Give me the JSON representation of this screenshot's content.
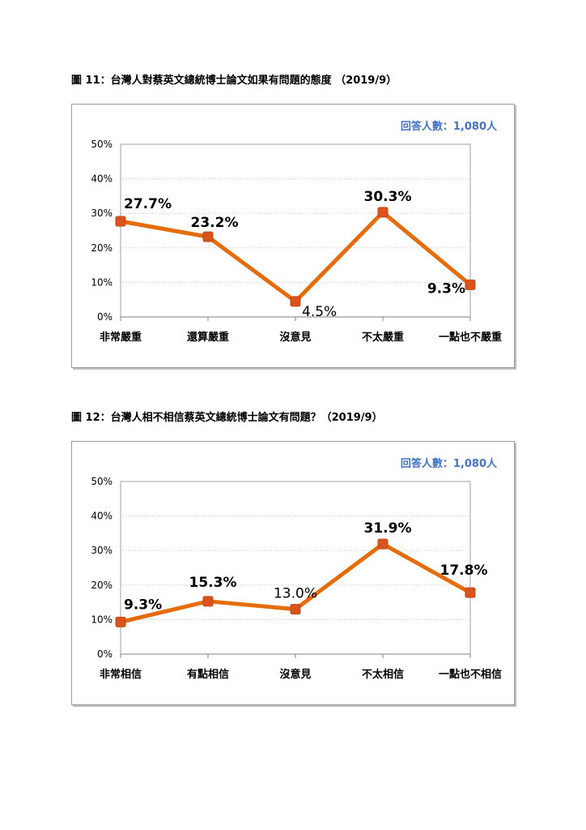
{
  "figure11": {
    "title": "圖 11：台灣人對蔡英文總統博士論文如果有問題的態度 （2019/9）",
    "respondents": "回答人數：1,080人"
  },
  "figure12": {
    "title": "圖 12：台灣人相不相信蔡英文總統博士論文有問題？（2019/9）",
    "respondents": "回答人數：1,080人"
  },
  "chart_data": [
    {
      "type": "line",
      "title": "圖 11：台灣人對蔡英文總統博士論文如果有問題的態度 （2019/9）",
      "categories": [
        "非常嚴重",
        "還算嚴重",
        "沒意見",
        "不太嚴重",
        "一點也不嚴重"
      ],
      "series": [
        {
          "values": [
            27.7,
            23.2,
            4.5,
            30.3,
            9.3
          ]
        }
      ],
      "data_labels": [
        "27.7%",
        "23.2%",
        "4.5%",
        "30.3%",
        "9.3%"
      ],
      "y_ticks": [
        "0%",
        "10%",
        "20%",
        "30%",
        "40%",
        "50%"
      ],
      "ylim": [
        0,
        50
      ],
      "grid": true,
      "annotation": "回答人數：1,080人",
      "line_color": "#e46c0a",
      "marker_color": "#d9531e"
    },
    {
      "type": "line",
      "title": "圖 12：台灣人相不相信蔡英文總統博士論文有問題？（2019/9）",
      "categories": [
        "非常相信",
        "有點相信",
        "沒意見",
        "不太相信",
        "一點也不相信"
      ],
      "series": [
        {
          "values": [
            9.3,
            15.3,
            13.0,
            31.9,
            17.8
          ]
        }
      ],
      "data_labels": [
        "9.3%",
        "15.3%",
        "13.0%",
        "31.9%",
        "17.8%"
      ],
      "y_ticks": [
        "0%",
        "10%",
        "20%",
        "30%",
        "40%",
        "50%"
      ],
      "ylim": [
        0,
        50
      ],
      "grid": true,
      "annotation": "回答人數：1,080人",
      "line_color": "#e46c0a",
      "marker_color": "#d9531e"
    }
  ]
}
